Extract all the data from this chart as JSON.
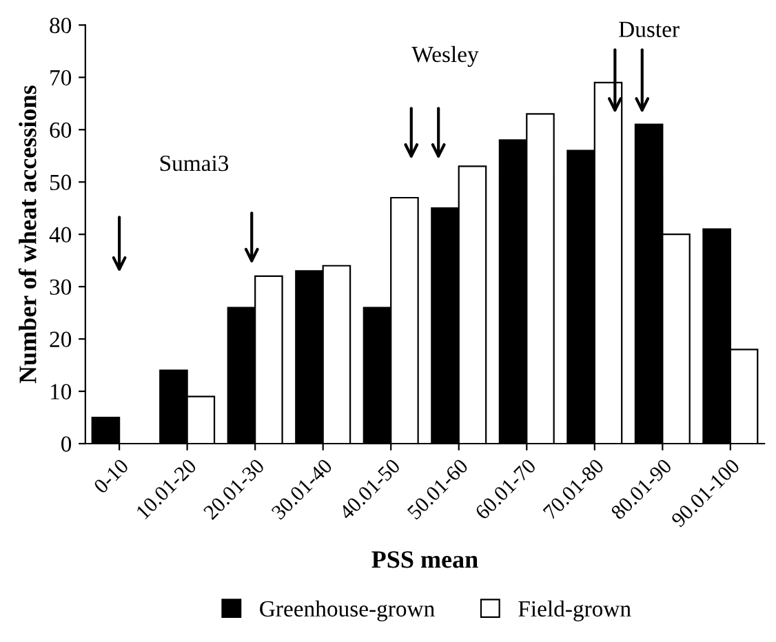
{
  "chart_data": {
    "type": "bar",
    "xlabel": "PSS mean",
    "ylabel": "Number of wheat accessions",
    "categories": [
      "0-10",
      "10.01-20",
      "20.01-30",
      "30.01-40",
      "40.01-50",
      "50.01-60",
      "60.01-70",
      "70.01-80",
      "80.01-90",
      "90.01-100"
    ],
    "series": [
      {
        "name": "Greenhouse-grown",
        "color": "#000000",
        "values": [
          5,
          14,
          26,
          33,
          26,
          45,
          58,
          56,
          61,
          41
        ]
      },
      {
        "name": "Field-grown",
        "color": "#ffffff",
        "values": [
          null,
          9,
          32,
          34,
          47,
          53,
          63,
          69,
          40,
          18
        ]
      }
    ],
    "ylim": [
      0,
      80
    ],
    "yticks": [
      0,
      10,
      20,
      30,
      40,
      50,
      60,
      70,
      80
    ],
    "grid": false,
    "legend": "bottom",
    "annotations": [
      "Sumai3",
      "Wesley",
      "Duster"
    ]
  }
}
